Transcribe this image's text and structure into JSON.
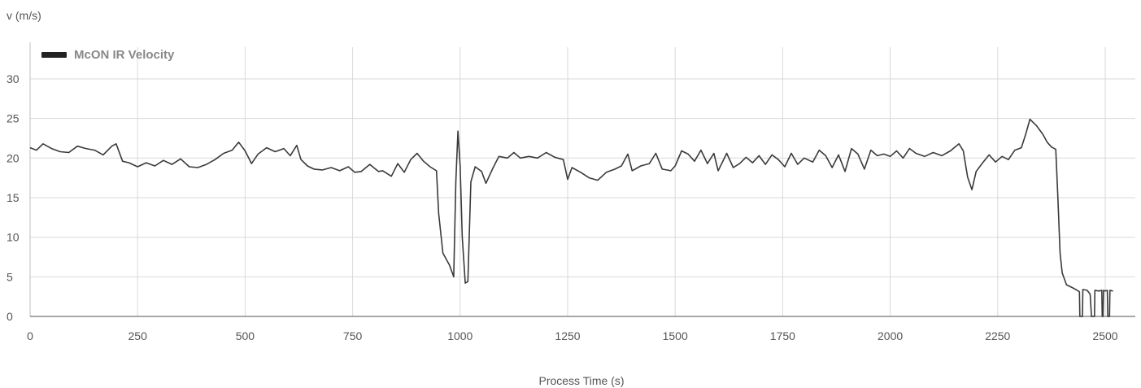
{
  "chart_data": {
    "type": "line",
    "title": "",
    "xlabel": "Process Time (s)",
    "ylabel": "v (m/s)",
    "xlim": [
      0,
      2570
    ],
    "ylim": [
      0,
      34
    ],
    "x_ticks": [
      0,
      250,
      500,
      750,
      1000,
      1250,
      1500,
      1750,
      2000,
      2250,
      2500
    ],
    "y_ticks": [
      0,
      5,
      10,
      15,
      20,
      25,
      30
    ],
    "grid": true,
    "legend": "top-left",
    "series": [
      {
        "name": "McON IR Velocity",
        "color": "#3a3a3a",
        "points": [
          [
            0,
            21.3
          ],
          [
            15,
            21.0
          ],
          [
            30,
            21.8
          ],
          [
            50,
            21.2
          ],
          [
            70,
            20.8
          ],
          [
            90,
            20.7
          ],
          [
            110,
            21.5
          ],
          [
            130,
            21.2
          ],
          [
            150,
            21.0
          ],
          [
            170,
            20.4
          ],
          [
            190,
            21.5
          ],
          [
            200,
            21.8
          ],
          [
            215,
            19.6
          ],
          [
            230,
            19.4
          ],
          [
            250,
            18.9
          ],
          [
            270,
            19.4
          ],
          [
            290,
            19.0
          ],
          [
            310,
            19.7
          ],
          [
            330,
            19.2
          ],
          [
            350,
            19.9
          ],
          [
            370,
            18.9
          ],
          [
            390,
            18.8
          ],
          [
            410,
            19.2
          ],
          [
            430,
            19.8
          ],
          [
            450,
            20.6
          ],
          [
            470,
            21.0
          ],
          [
            485,
            22.0
          ],
          [
            500,
            20.9
          ],
          [
            515,
            19.3
          ],
          [
            530,
            20.5
          ],
          [
            550,
            21.3
          ],
          [
            570,
            20.8
          ],
          [
            590,
            21.2
          ],
          [
            605,
            20.3
          ],
          [
            620,
            21.6
          ],
          [
            630,
            19.8
          ],
          [
            645,
            19.0
          ],
          [
            660,
            18.6
          ],
          [
            680,
            18.5
          ],
          [
            700,
            18.8
          ],
          [
            720,
            18.4
          ],
          [
            740,
            18.9
          ],
          [
            755,
            18.2
          ],
          [
            770,
            18.3
          ],
          [
            790,
            19.2
          ],
          [
            810,
            18.3
          ],
          [
            820,
            18.4
          ],
          [
            840,
            17.7
          ],
          [
            855,
            19.3
          ],
          [
            870,
            18.2
          ],
          [
            885,
            19.8
          ],
          [
            900,
            20.6
          ],
          [
            915,
            19.6
          ],
          [
            930,
            18.9
          ],
          [
            945,
            18.4
          ],
          [
            950,
            13.0
          ],
          [
            960,
            8.0
          ],
          [
            975,
            6.5
          ],
          [
            985,
            5.0
          ],
          [
            990,
            17.0
          ],
          [
            995,
            23.4
          ],
          [
            1000,
            19.0
          ],
          [
            1005,
            10.0
          ],
          [
            1012,
            4.2
          ],
          [
            1018,
            4.4
          ],
          [
            1025,
            17.0
          ],
          [
            1035,
            18.9
          ],
          [
            1050,
            18.3
          ],
          [
            1060,
            16.8
          ],
          [
            1075,
            18.6
          ],
          [
            1090,
            20.2
          ],
          [
            1110,
            20.0
          ],
          [
            1125,
            20.7
          ],
          [
            1140,
            20.0
          ],
          [
            1160,
            20.2
          ],
          [
            1180,
            20.0
          ],
          [
            1200,
            20.7
          ],
          [
            1220,
            20.1
          ],
          [
            1240,
            19.8
          ],
          [
            1250,
            17.3
          ],
          [
            1260,
            18.8
          ],
          [
            1280,
            18.2
          ],
          [
            1300,
            17.5
          ],
          [
            1320,
            17.2
          ],
          [
            1340,
            18.2
          ],
          [
            1360,
            18.6
          ],
          [
            1375,
            19.0
          ],
          [
            1390,
            20.5
          ],
          [
            1400,
            18.4
          ],
          [
            1420,
            19.0
          ],
          [
            1440,
            19.3
          ],
          [
            1455,
            20.6
          ],
          [
            1470,
            18.6
          ],
          [
            1490,
            18.4
          ],
          [
            1500,
            19.0
          ],
          [
            1515,
            20.9
          ],
          [
            1530,
            20.5
          ],
          [
            1545,
            19.6
          ],
          [
            1560,
            21.0
          ],
          [
            1575,
            19.3
          ],
          [
            1590,
            20.6
          ],
          [
            1600,
            18.4
          ],
          [
            1620,
            20.6
          ],
          [
            1635,
            18.8
          ],
          [
            1650,
            19.3
          ],
          [
            1665,
            20.1
          ],
          [
            1680,
            19.4
          ],
          [
            1695,
            20.3
          ],
          [
            1710,
            19.2
          ],
          [
            1725,
            20.4
          ],
          [
            1740,
            19.8
          ],
          [
            1755,
            18.9
          ],
          [
            1770,
            20.6
          ],
          [
            1785,
            19.2
          ],
          [
            1800,
            20.0
          ],
          [
            1820,
            19.5
          ],
          [
            1835,
            21.0
          ],
          [
            1850,
            20.3
          ],
          [
            1865,
            18.8
          ],
          [
            1880,
            20.4
          ],
          [
            1895,
            18.3
          ],
          [
            1910,
            21.2
          ],
          [
            1925,
            20.5
          ],
          [
            1940,
            18.6
          ],
          [
            1955,
            21.0
          ],
          [
            1970,
            20.3
          ],
          [
            1985,
            20.5
          ],
          [
            2000,
            20.2
          ],
          [
            2015,
            20.9
          ],
          [
            2030,
            20.0
          ],
          [
            2045,
            21.2
          ],
          [
            2060,
            20.6
          ],
          [
            2080,
            20.2
          ],
          [
            2100,
            20.7
          ],
          [
            2120,
            20.3
          ],
          [
            2140,
            20.9
          ],
          [
            2160,
            21.8
          ],
          [
            2170,
            20.9
          ],
          [
            2180,
            17.6
          ],
          [
            2190,
            16.0
          ],
          [
            2200,
            18.3
          ],
          [
            2215,
            19.4
          ],
          [
            2230,
            20.4
          ],
          [
            2245,
            19.5
          ],
          [
            2260,
            20.2
          ],
          [
            2275,
            19.8
          ],
          [
            2290,
            21.0
          ],
          [
            2305,
            21.3
          ],
          [
            2315,
            23.0
          ],
          [
            2325,
            24.9
          ],
          [
            2340,
            24.1
          ],
          [
            2355,
            23.0
          ],
          [
            2365,
            22.0
          ],
          [
            2375,
            21.4
          ],
          [
            2385,
            21.1
          ],
          [
            2390,
            15.0
          ],
          [
            2395,
            8.0
          ],
          [
            2400,
            5.5
          ],
          [
            2410,
            4.0
          ],
          [
            2425,
            3.6
          ],
          [
            2435,
            3.3
          ],
          [
            2440,
            3.1
          ],
          [
            2441,
            0.0
          ],
          [
            2447,
            0.0
          ],
          [
            2448,
            3.4
          ],
          [
            2458,
            3.3
          ],
          [
            2465,
            2.8
          ],
          [
            2468,
            0.0
          ],
          [
            2475,
            0.0
          ],
          [
            2476,
            3.3
          ],
          [
            2485,
            3.2
          ],
          [
            2492,
            3.3
          ],
          [
            2493,
            0.0
          ],
          [
            2495,
            0.0
          ],
          [
            2496,
            3.3
          ],
          [
            2500,
            3.2
          ],
          [
            2505,
            3.3
          ],
          [
            2506,
            0.0
          ],
          [
            2510,
            0.0
          ],
          [
            2511,
            3.3
          ],
          [
            2518,
            3.2
          ]
        ]
      }
    ]
  }
}
